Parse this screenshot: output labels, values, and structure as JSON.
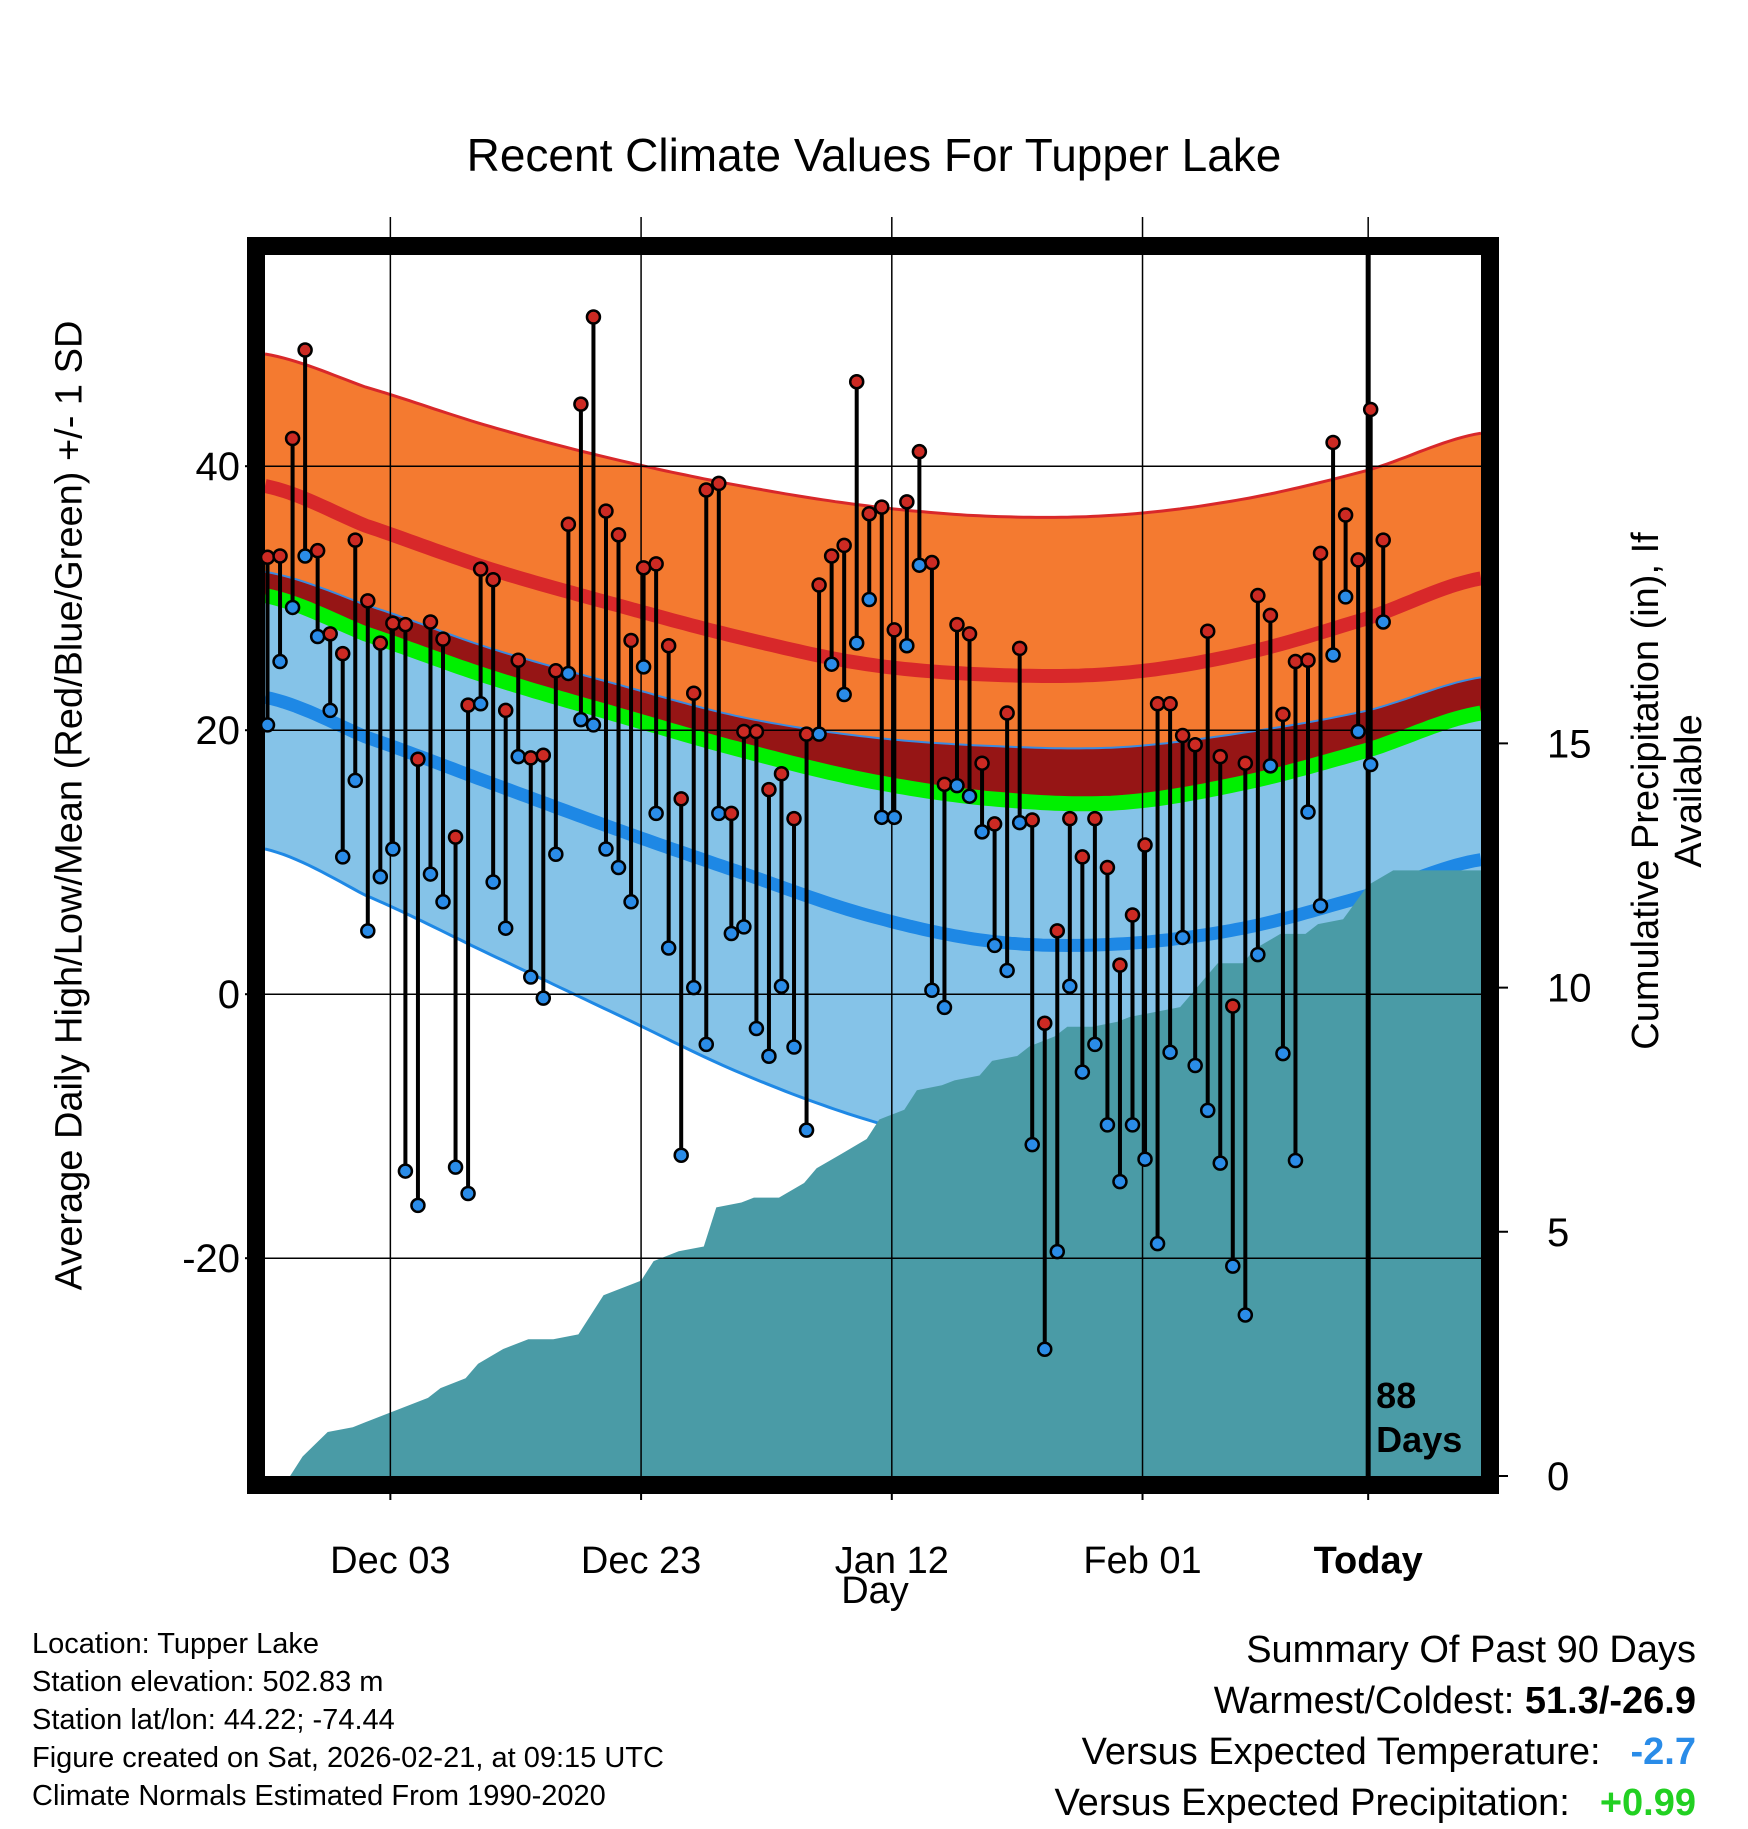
{
  "chart_data": {
    "type": "line",
    "title": "Recent Climate Values For Tupper Lake",
    "xlabel": "Day",
    "ylabel": "Average Daily High/Low/Mean (Red/Blue/Green) +/- 1 SD",
    "y2label": "Cumulative Precipitation (in), If Available",
    "ylim": [
      -36.5,
      56
    ],
    "y2lim": [
      0,
      25
    ],
    "x_range_days": [
      -88,
      9
    ],
    "yticks": [
      -20,
      0,
      20,
      40
    ],
    "y2ticks": [
      0,
      5,
      10,
      15
    ],
    "xticks": [
      {
        "day": -78,
        "label": "Dec 03"
      },
      {
        "day": -58,
        "label": "Dec 23"
      },
      {
        "day": -38,
        "label": "Jan 12"
      },
      {
        "day": -18,
        "label": "Feb 01"
      },
      {
        "day": 0,
        "label": "Today"
      }
    ],
    "today_marker": {
      "day": 0,
      "label_line1": "88",
      "label_line2": "Days"
    },
    "normals": {
      "days": [
        -88,
        -80,
        -70,
        -60,
        -50,
        -40,
        -30,
        -20,
        -10,
        0,
        9
      ],
      "high_mean": [
        38.5,
        35.5,
        32.2,
        29.5,
        27.0,
        25.0,
        24.2,
        24.3,
        25.8,
        28.5,
        31.5
      ],
      "high_sd_upper": [
        48.5,
        46.0,
        43.0,
        40.5,
        38.5,
        37.0,
        36.2,
        36.3,
        37.5,
        39.7,
        42.5
      ],
      "mean": [
        30.2,
        27.3,
        24.0,
        21.2,
        18.5,
        16.2,
        14.8,
        14.5,
        16.0,
        18.5,
        21.3
      ],
      "low_sd_upper": [
        32.0,
        29.5,
        26.2,
        23.5,
        21.0,
        19.5,
        18.8,
        18.7,
        19.8,
        21.5,
        24.0
      ],
      "low_mean": [
        22.5,
        19.5,
        16.0,
        12.5,
        9.2,
        6.0,
        4.0,
        3.8,
        5.0,
        7.5,
        10.2
      ],
      "low_sd_lower": [
        11.0,
        7.5,
        3.0,
        -1.5,
        -6.0,
        -9.5,
        -11.8,
        -11.5,
        -9.5,
        -7.0,
        -4.0
      ]
    },
    "series": [
      {
        "name": "High",
        "color": "#cc2a23",
        "values": [
          33.1,
          33.2,
          42.1,
          48.8,
          33.6,
          27.3,
          25.8,
          34.4,
          29.8,
          26.6,
          28.1,
          28.0,
          17.8,
          28.2,
          26.9,
          11.9,
          21.9,
          32.2,
          31.4,
          21.5,
          25.3,
          17.9,
          18.1,
          24.5,
          35.6,
          44.7,
          51.3,
          36.6,
          34.8,
          26.8,
          32.3,
          32.6,
          26.4,
          14.8,
          22.8,
          38.2,
          38.7,
          13.7,
          19.9,
          19.9,
          15.5,
          16.7,
          13.3,
          19.7,
          31.0,
          33.2,
          34.0,
          46.4,
          36.4,
          36.9,
          27.6,
          37.3,
          41.1,
          32.7,
          15.9,
          28.0,
          27.3,
          17.5,
          12.9,
          21.3,
          26.2,
          13.2,
          -2.2,
          4.8,
          13.3,
          10.4,
          13.3,
          9.6,
          2.2,
          6.0,
          11.3,
          22.0,
          22.0,
          19.6,
          18.9,
          27.5,
          18.0,
          -0.9,
          17.5,
          30.2,
          28.7,
          21.2,
          25.2,
          25.3,
          33.4,
          41.8,
          36.3,
          32.9,
          44.3,
          34.4
        ]
      },
      {
        "name": "Low",
        "color": "#2a8ce8",
        "values": [
          20.4,
          25.2,
          29.3,
          33.2,
          27.1,
          21.5,
          10.4,
          16.2,
          4.8,
          8.9,
          11.0,
          -13.4,
          -16.0,
          9.1,
          7.0,
          -13.1,
          -15.1,
          22.0,
          8.5,
          5.0,
          18.0,
          1.3,
          -0.3,
          10.6,
          24.3,
          20.8,
          20.4,
          11.0,
          9.6,
          7.0,
          24.8,
          13.7,
          3.5,
          -12.2,
          0.5,
          -3.8,
          13.7,
          4.6,
          5.1,
          -2.6,
          -4.7,
          0.6,
          -4.0,
          -10.3,
          19.7,
          25.0,
          22.7,
          26.6,
          29.9,
          13.4,
          13.4,
          26.4,
          32.5,
          0.3,
          -1.0,
          15.8,
          15.0,
          12.3,
          3.7,
          1.8,
          13.0,
          -11.4,
          -26.9,
          -19.5,
          0.6,
          -5.9,
          -3.8,
          -9.9,
          -14.2,
          -9.9,
          -12.5,
          -18.9,
          -4.4,
          4.3,
          -5.4,
          -8.8,
          -12.8,
          -20.6,
          -24.3,
          3.0,
          17.3,
          -4.5,
          -12.6,
          13.8,
          6.7,
          25.7,
          30.1,
          19.9,
          17.4,
          28.2
        ]
      },
      {
        "name": "Cumulative Precipitation",
        "color": "#4a9ba6",
        "days": [
          -86,
          -85,
          -83,
          -81,
          -80,
          -78,
          -77,
          -75,
          -74,
          -72,
          -71,
          -69,
          -68,
          -67,
          -65,
          -63,
          -61,
          -60,
          -58,
          -57,
          -55,
          -53,
          -52,
          -50,
          -49,
          -47,
          -45,
          -44,
          -42,
          -40,
          -39,
          -37,
          -36,
          -34,
          -33,
          -31,
          -30,
          -28,
          -27,
          -25,
          -24,
          -22,
          -20,
          -19,
          -17,
          -15,
          -14,
          -12,
          -10,
          -9,
          -7,
          -5,
          -4,
          -2,
          0,
          2,
          4,
          6,
          8,
          9
        ],
        "values": [
          0,
          0.4,
          0.9,
          1.0,
          1.1,
          1.3,
          1.4,
          1.6,
          1.8,
          2.0,
          2.3,
          2.6,
          2.7,
          2.8,
          2.8,
          2.9,
          3.7,
          3.8,
          4.0,
          4.4,
          4.6,
          4.7,
          5.5,
          5.6,
          5.7,
          5.7,
          6.0,
          6.3,
          6.6,
          6.9,
          7.3,
          7.5,
          7.9,
          8.0,
          8.1,
          8.2,
          8.5,
          8.6,
          8.8,
          9.0,
          9.2,
          9.2,
          9.3,
          9.4,
          9.5,
          9.6,
          9.9,
          10.5,
          10.5,
          10.8,
          11.1,
          11.1,
          11.3,
          11.4,
          12.1,
          12.4,
          12.4,
          12.4,
          12.4,
          12.4
        ]
      }
    ]
  },
  "meta": {
    "location": "Location: Tupper Lake",
    "elevation": "Station elevation: 502.83 m",
    "latlon": "Station lat/lon: 44.22; -74.44",
    "created": "Figure created on Sat, 2026-02-21, at 09:15 UTC",
    "normals": "Climate Normals Estimated From 1990-2020"
  },
  "summary": {
    "heading": "Summary Of Past 90 Days",
    "warm_label": "Warmest/Coldest: ",
    "warm_value": "51.3/-26.9",
    "temp_label": "Versus Expected Temperature:",
    "temp_value": "-2.7",
    "precip_label": "Versus Expected Precipitation:",
    "precip_value": "+0.99"
  }
}
